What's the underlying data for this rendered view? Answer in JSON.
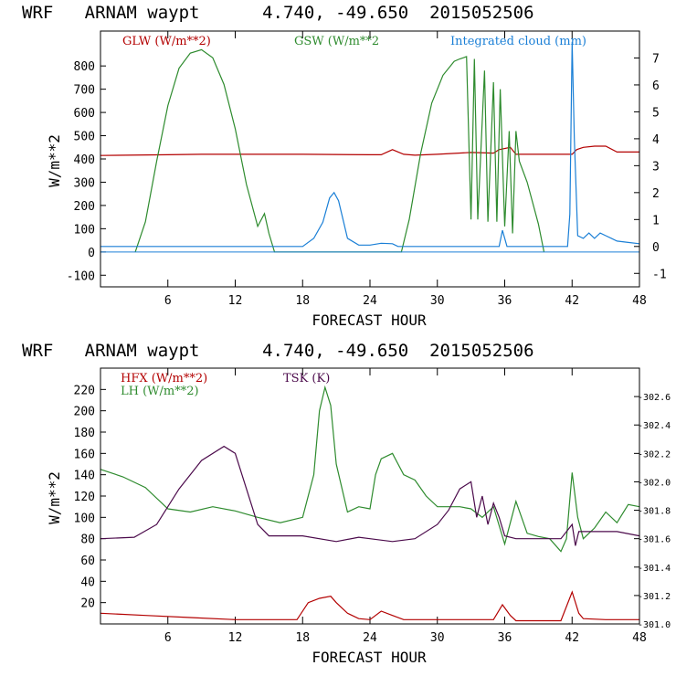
{
  "chart_data": [
    {
      "type": "line",
      "title": "WRF   ARNAM waypt      4.740, -49.650  2015052506",
      "xlabel": "FORECAST HOUR",
      "ylabel": "W/m**2",
      "xlim": [
        0,
        48
      ],
      "ylim": [
        -150,
        950
      ],
      "y2lim": [
        -1.5,
        8
      ],
      "xticks": [
        6,
        12,
        18,
        24,
        30,
        36,
        42,
        48
      ],
      "yticks": [
        -100,
        0,
        100,
        200,
        300,
        400,
        500,
        600,
        700,
        800
      ],
      "y2ticks": [
        -1,
        0,
        1,
        2,
        3,
        4,
        5,
        6,
        7
      ],
      "grid": false,
      "legend_placement": "top",
      "series": [
        {
          "name": "GLW (W/m**2)",
          "color": "#b30000",
          "axis": "left",
          "x": [
            0,
            6,
            9,
            12,
            18,
            24,
            25,
            26,
            27,
            28,
            30,
            33,
            35,
            35.5,
            36.5,
            37,
            40,
            42,
            42.4,
            43,
            44,
            45,
            46,
            48
          ],
          "y": [
            415,
            418,
            420,
            420,
            420,
            418,
            418,
            440,
            420,
            416,
            420,
            428,
            425,
            440,
            450,
            420,
            420,
            420,
            440,
            450,
            455,
            455,
            430,
            430
          ]
        },
        {
          "name": "GSW (W/m**2",
          "color": "#2e8b2e",
          "axis": "left",
          "x": [
            3.1,
            4,
            5,
            6,
            7,
            8,
            9,
            10,
            11,
            12,
            13,
            14,
            14.6,
            15,
            15.5,
            26.8,
            27.5,
            28.5,
            29.5,
            30.5,
            31.5,
            32,
            32.6,
            33.0,
            33.3,
            33.6,
            34.2,
            34.5,
            35.0,
            35.3,
            35.6,
            36.0,
            36.4,
            36.7,
            37.0,
            37.3,
            38.0,
            39.0,
            39.5
          ],
          "y": [
            0,
            130,
            390,
            630,
            790,
            855,
            870,
            835,
            720,
            530,
            290,
            110,
            165,
            80,
            0,
            0,
            140,
            420,
            640,
            760,
            820,
            830,
            840,
            140,
            830,
            140,
            780,
            130,
            730,
            130,
            700,
            110,
            520,
            80,
            520,
            390,
            300,
            120,
            0
          ]
        },
        {
          "name": "Integrated cloud (mm)",
          "color": "#1a7fd6",
          "axis": "right",
          "x": [
            0,
            18,
            19,
            19.8,
            20.4,
            20.8,
            21.2,
            21.6,
            22,
            23,
            24,
            25,
            26,
            26.5,
            34,
            35.5,
            35.8,
            36,
            36.2,
            41.6,
            41.8,
            42,
            42.2,
            42.5,
            43,
            43.5,
            44,
            44.5,
            45,
            45.5,
            46,
            47,
            48
          ],
          "y": [
            0,
            0,
            0.3,
            0.9,
            1.8,
            2.0,
            1.7,
            1.0,
            0.3,
            0.05,
            0.05,
            0.12,
            0.1,
            0,
            0,
            0,
            0.6,
            0.3,
            0,
            0,
            1.2,
            7.6,
            4.0,
            0.4,
            0.3,
            0.5,
            0.3,
            0.5,
            0.4,
            0.3,
            0.2,
            0.15,
            0.1
          ]
        }
      ]
    },
    {
      "type": "line",
      "title": "WRF   ARNAM waypt      4.740, -49.650  2015052506",
      "xlabel": "FORECAST HOUR",
      "ylabel": "W/m**2",
      "xlim": [
        0,
        48
      ],
      "ylim": [
        0,
        240
      ],
      "y2lim": [
        301.0,
        302.8
      ],
      "xticks": [
        6,
        12,
        18,
        24,
        30,
        36,
        42,
        48
      ],
      "yticks": [
        20,
        40,
        60,
        80,
        100,
        120,
        140,
        160,
        180,
        200,
        220
      ],
      "y2ticks": [
        301.0,
        301.2,
        301.4,
        301.6,
        301.8,
        302.0,
        302.2,
        302.4,
        302.6
      ],
      "y2ticklabels": [
        "301.0",
        "301.2",
        "301.4",
        "301.6",
        "301.8",
        "302.0",
        "302.2",
        "302.4",
        "302.6"
      ],
      "grid": false,
      "legend_placement": "top",
      "series": [
        {
          "name": "HFX (W/m**2)",
          "color": "#b30000",
          "axis": "left",
          "x": [
            0,
            4,
            8,
            12,
            17.5,
            18.5,
            19.5,
            20.5,
            21,
            22,
            23,
            24,
            25,
            26,
            27,
            30,
            35,
            35.8,
            36.5,
            37,
            41,
            42,
            42.6,
            43,
            45,
            48
          ],
          "y": [
            10,
            8,
            6,
            4,
            4,
            20,
            24,
            26,
            20,
            10,
            5,
            4,
            12,
            8,
            4,
            4,
            4,
            18,
            8,
            3,
            3,
            30,
            10,
            5,
            4,
            4
          ]
        },
        {
          "name": "LH  (W/m**2)",
          "color": "#2e8b2e",
          "axis": "left",
          "x": [
            0,
            2,
            4,
            6,
            8,
            10,
            12,
            14,
            16,
            18,
            19,
            19.5,
            20,
            20.5,
            21,
            22,
            23,
            24,
            24.5,
            25,
            26,
            27,
            28,
            29,
            30,
            32,
            33,
            34,
            35,
            36,
            37,
            38,
            39,
            40,
            41,
            41.5,
            42,
            42.5,
            43,
            44,
            45,
            46,
            47,
            48
          ],
          "y": [
            145,
            138,
            128,
            108,
            105,
            110,
            106,
            100,
            95,
            100,
            140,
            200,
            222,
            205,
            150,
            105,
            110,
            108,
            140,
            155,
            160,
            140,
            135,
            120,
            110,
            110,
            108,
            100,
            110,
            75,
            115,
            85,
            82,
            80,
            68,
            80,
            142,
            100,
            80,
            90,
            105,
            95,
            112,
            110
          ]
        },
        {
          "name": "TSK (K)",
          "color": "#4b0a4b",
          "axis": "right",
          "x": [
            0,
            3,
            5,
            7,
            9,
            11,
            12,
            13,
            14,
            15,
            18,
            21,
            23,
            24,
            26,
            28,
            30,
            31,
            32,
            33,
            33.5,
            34,
            34.5,
            35,
            35.5,
            36,
            37,
            38,
            40,
            41,
            42,
            42.3,
            42.6,
            44,
            46,
            48
          ],
          "y": [
            301.6,
            301.61,
            301.7,
            301.95,
            302.15,
            302.25,
            302.2,
            301.95,
            301.7,
            301.62,
            301.62,
            301.58,
            301.61,
            301.6,
            301.58,
            301.6,
            301.7,
            301.8,
            301.95,
            302.0,
            301.75,
            301.9,
            301.7,
            301.85,
            301.75,
            301.62,
            301.6,
            301.6,
            301.6,
            301.6,
            301.7,
            301.55,
            301.65,
            301.65,
            301.65,
            301.62
          ]
        }
      ]
    }
  ]
}
